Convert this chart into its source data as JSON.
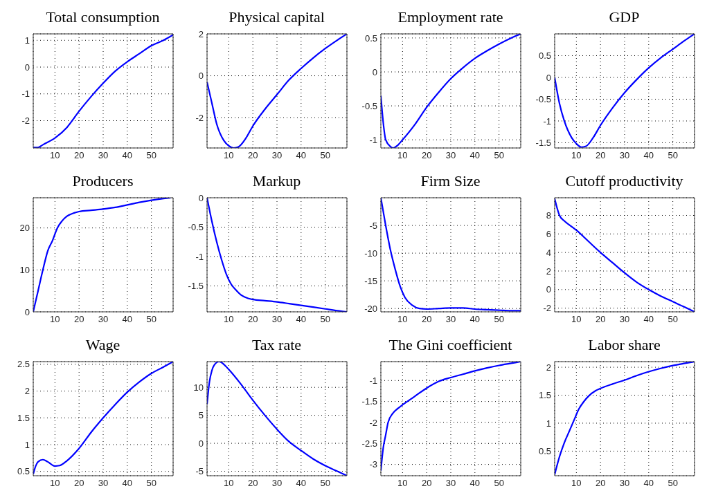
{
  "chart_data": [
    {
      "type": "line",
      "title": "Total consumption",
      "color": "#0000ff",
      "grid": true,
      "xlim": [
        1,
        59
      ],
      "xticks": [
        10,
        20,
        30,
        40,
        50
      ],
      "ylim": [
        -3.02,
        1.24
      ],
      "yticks": [
        -2,
        -1,
        0,
        1
      ],
      "x": [
        1,
        3,
        5,
        10,
        15,
        20,
        25,
        30,
        35,
        40,
        45,
        50,
        55,
        59
      ],
      "values": [
        -3,
        -3,
        -2.9,
        -2.65,
        -2.25,
        -1.65,
        -1.1,
        -0.6,
        -0.15,
        0.2,
        0.5,
        0.8,
        1.0,
        1.2
      ]
    },
    {
      "type": "line",
      "title": "Physical capital",
      "color": "#0000ff",
      "grid": true,
      "xlim": [
        1,
        59
      ],
      "xticks": [
        10,
        20,
        30,
        40,
        50
      ],
      "ylim": [
        -3.45,
        2
      ],
      "yticks": [
        -2,
        0,
        2
      ],
      "x": [
        1,
        3,
        5,
        8,
        10,
        12,
        14,
        17,
        20,
        25,
        30,
        35,
        40,
        45,
        50,
        55,
        59
      ],
      "values": [
        -0.3,
        -1.3,
        -2.3,
        -3.1,
        -3.35,
        -3.45,
        -3.4,
        -3.0,
        -2.4,
        -1.6,
        -0.9,
        -0.2,
        0.35,
        0.85,
        1.3,
        1.7,
        2.0
      ]
    },
    {
      "type": "line",
      "title": "Employment rate",
      "color": "#0000ff",
      "grid": true,
      "xlim": [
        1,
        59
      ],
      "xticks": [
        10,
        20,
        30,
        40,
        50
      ],
      "ylim": [
        -1.12,
        0.56
      ],
      "yticks": [
        -1,
        -0.5,
        0,
        0.5
      ],
      "x": [
        1,
        2,
        3,
        5,
        6,
        8,
        10,
        15,
        20,
        25,
        30,
        35,
        40,
        45,
        50,
        55,
        59
      ],
      "values": [
        -0.35,
        -0.75,
        -1.0,
        -1.1,
        -1.12,
        -1.08,
        -1.0,
        -0.78,
        -0.52,
        -0.3,
        -0.1,
        0.06,
        0.2,
        0.31,
        0.41,
        0.5,
        0.56
      ]
    },
    {
      "type": "line",
      "title": "GDP",
      "color": "#0000ff",
      "grid": true,
      "xlim": [
        1,
        59
      ],
      "xticks": [
        10,
        20,
        30,
        40,
        50
      ],
      "ylim": [
        -1.62,
        1
      ],
      "yticks": [
        -1.5,
        -1,
        -0.5,
        0,
        0.5
      ],
      "x": [
        1,
        3,
        5,
        8,
        10,
        12,
        14,
        17,
        20,
        25,
        30,
        35,
        40,
        45,
        50,
        55,
        59
      ],
      "values": [
        0,
        -0.6,
        -1.0,
        -1.38,
        -1.52,
        -1.6,
        -1.58,
        -1.38,
        -1.1,
        -0.7,
        -0.35,
        -0.05,
        0.22,
        0.45,
        0.65,
        0.85,
        1.0
      ]
    },
    {
      "type": "line",
      "title": "Producers",
      "color": "#0000ff",
      "grid": true,
      "xlim": [
        1,
        59
      ],
      "xticks": [
        10,
        20,
        30,
        40,
        50
      ],
      "ylim": [
        0,
        27.2
      ],
      "yticks": [
        0,
        10,
        20
      ],
      "x": [
        1,
        3,
        5,
        7,
        9,
        11,
        13,
        15,
        18,
        20,
        25,
        30,
        35,
        40,
        45,
        50,
        55,
        58
      ],
      "values": [
        0,
        5,
        10,
        14.5,
        17,
        20,
        21.7,
        22.8,
        23.6,
        23.9,
        24.2,
        24.5,
        24.9,
        25.5,
        26.1,
        26.6,
        27,
        27.2
      ]
    },
    {
      "type": "line",
      "title": "Markup",
      "color": "#0000ff",
      "grid": true,
      "xlim": [
        1,
        59
      ],
      "xticks": [
        10,
        20,
        30,
        40,
        50
      ],
      "ylim": [
        -1.94,
        0
      ],
      "yticks": [
        -1.5,
        -1,
        -0.5,
        0
      ],
      "x": [
        1,
        3,
        5,
        7,
        9,
        11,
        13,
        15,
        18,
        20,
        25,
        30,
        35,
        40,
        45,
        50,
        55,
        59
      ],
      "values": [
        0,
        -0.4,
        -0.75,
        -1.05,
        -1.3,
        -1.47,
        -1.57,
        -1.65,
        -1.71,
        -1.73,
        -1.75,
        -1.77,
        -1.8,
        -1.83,
        -1.86,
        -1.89,
        -1.92,
        -1.94
      ]
    },
    {
      "type": "line",
      "title": "Firm Size",
      "color": "#0000ff",
      "grid": true,
      "xlim": [
        1,
        59
      ],
      "xticks": [
        10,
        20,
        30,
        40,
        50
      ],
      "ylim": [
        -20.6,
        0
      ],
      "yticks": [
        -20,
        -15,
        -10,
        -5
      ],
      "x": [
        1,
        3,
        5,
        7,
        9,
        11,
        14,
        17,
        20,
        25,
        30,
        35,
        40,
        45,
        50,
        55,
        59
      ],
      "values": [
        0,
        -5,
        -9.5,
        -13,
        -16,
        -18,
        -19.4,
        -20,
        -20.1,
        -20,
        -19.9,
        -19.9,
        -20.1,
        -20.2,
        -20.3,
        -20.4,
        -20.4
      ]
    },
    {
      "type": "line",
      "title": "Cutoff productivity",
      "color": "#0000ff",
      "grid": true,
      "xlim": [
        1,
        59
      ],
      "xticks": [
        10,
        20,
        30,
        40,
        50
      ],
      "ylim": [
        -2.4,
        9.9
      ],
      "yticks": [
        -2,
        0,
        2,
        4,
        6,
        8
      ],
      "x": [
        1,
        2,
        3,
        5,
        8,
        10,
        15,
        20,
        25,
        30,
        35,
        40,
        45,
        50,
        55,
        59
      ],
      "values": [
        9.8,
        8.8,
        8,
        7.4,
        6.8,
        6.4,
        5.2,
        4.0,
        2.9,
        1.8,
        0.8,
        0,
        -0.7,
        -1.3,
        -1.9,
        -2.4
      ]
    },
    {
      "type": "line",
      "title": "Wage",
      "color": "#0000ff",
      "grid": true,
      "xlim": [
        1,
        59
      ],
      "xticks": [
        10,
        20,
        30,
        40,
        50
      ],
      "ylim": [
        0.42,
        2.55
      ],
      "yticks": [
        0.5,
        1,
        1.5,
        2,
        2.5
      ],
      "x": [
        1,
        2,
        3,
        5,
        7,
        10,
        12,
        15,
        20,
        25,
        30,
        35,
        40,
        45,
        50,
        55,
        59
      ],
      "values": [
        0.45,
        0.6,
        0.68,
        0.72,
        0.68,
        0.6,
        0.61,
        0.7,
        0.93,
        1.23,
        1.5,
        1.75,
        1.98,
        2.17,
        2.33,
        2.45,
        2.55
      ]
    },
    {
      "type": "line",
      "title": "Tax rate",
      "color": "#0000ff",
      "grid": true,
      "xlim": [
        1,
        59
      ],
      "xticks": [
        10,
        20,
        30,
        40,
        50
      ],
      "ylim": [
        -5.8,
        14.6
      ],
      "yticks": [
        -5,
        0,
        5,
        10
      ],
      "x": [
        1,
        2,
        3,
        4,
        6,
        8,
        10,
        15,
        20,
        25,
        30,
        35,
        40,
        45,
        50,
        55,
        59
      ],
      "values": [
        7,
        11,
        13,
        14,
        14.6,
        14.1,
        13.2,
        10.6,
        7.7,
        5,
        2.5,
        0.3,
        -1.3,
        -2.8,
        -4.0,
        -5.0,
        -5.8
      ]
    },
    {
      "type": "line",
      "title": "The Gini coefficient",
      "color": "#0000ff",
      "grid": true,
      "xlim": [
        1,
        59
      ],
      "xticks": [
        10,
        20,
        30,
        40,
        50
      ],
      "ylim": [
        -3.27,
        -0.55
      ],
      "yticks": [
        -3,
        -2.5,
        -2,
        -1.5,
        -1
      ],
      "x": [
        1,
        2,
        3,
        4,
        6,
        8,
        10,
        15,
        20,
        25,
        30,
        35,
        40,
        45,
        50,
        55,
        59
      ],
      "values": [
        -3.15,
        -2.6,
        -2.3,
        -2.0,
        -1.78,
        -1.67,
        -1.58,
        -1.38,
        -1.18,
        -1.02,
        -0.93,
        -0.85,
        -0.77,
        -0.7,
        -0.64,
        -0.59,
        -0.55
      ]
    },
    {
      "type": "line",
      "title": "Labor share",
      "color": "#0000ff",
      "grid": true,
      "xlim": [
        1,
        59
      ],
      "xticks": [
        10,
        20,
        30,
        40,
        50
      ],
      "ylim": [
        0.06,
        2.1
      ],
      "yticks": [
        0.5,
        1,
        1.5,
        2
      ],
      "x": [
        1,
        3,
        5,
        7,
        9,
        11,
        13,
        15,
        18,
        20,
        25,
        30,
        35,
        40,
        45,
        50,
        55,
        59
      ],
      "values": [
        0.08,
        0.4,
        0.65,
        0.85,
        1.05,
        1.25,
        1.38,
        1.48,
        1.58,
        1.62,
        1.7,
        1.77,
        1.85,
        1.92,
        1.98,
        2.03,
        2.07,
        2.1
      ]
    }
  ]
}
